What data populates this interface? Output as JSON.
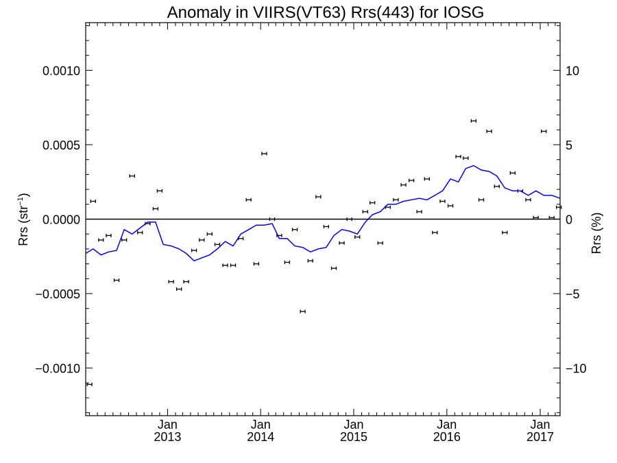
{
  "chart_data": {
    "type": "scatter",
    "title": "Anomaly in VIIRS(VT63) Rrs(443) for IOSG",
    "ylabel_left": "Rrs (str",
    "ylabel_left_sup": "−1",
    "ylabel_left_close": ")",
    "ylabel_right": "Rrs (%)",
    "x_range": [
      "2012-02-15",
      "2017-03-20"
    ],
    "ylim_left": [
      -0.00132,
      0.00132
    ],
    "ylim_right": [
      -13.2,
      13.2
    ],
    "zero_line": 0,
    "x_ticks": [
      {
        "date": "2013-01-01",
        "label_top": "Jan",
        "label_bottom": "2013"
      },
      {
        "date": "2014-01-01",
        "label_top": "Jan",
        "label_bottom": "2014"
      },
      {
        "date": "2015-01-01",
        "label_top": "Jan",
        "label_bottom": "2015"
      },
      {
        "date": "2016-01-01",
        "label_top": "Jan",
        "label_bottom": "2016"
      },
      {
        "date": "2017-01-01",
        "label_top": "Jan",
        "label_bottom": "2017"
      }
    ],
    "y_ticks_left": [
      {
        "value": 0.001,
        "label": "0.0010"
      },
      {
        "value": 0.0005,
        "label": "0.0005"
      },
      {
        "value": 0,
        "label": "0.0000"
      },
      {
        "value": -0.0005,
        "label": "−0.0005"
      },
      {
        "value": -0.001,
        "label": "−0.0010"
      }
    ],
    "y_ticks_right": [
      {
        "value": 10,
        "label": "10"
      },
      {
        "value": 5,
        "label": "5"
      },
      {
        "value": 0,
        "label": "0"
      },
      {
        "value": -5,
        "label": "−5"
      },
      {
        "value": -10,
        "label": "−10"
      }
    ],
    "series": [
      {
        "kind": "points-with-errorbars",
        "color": "#000000",
        "points": [
          {
            "date": "2012-03-01",
            "value": -0.00111
          },
          {
            "date": "2012-03-15",
            "value": 0.00012
          },
          {
            "date": "2012-04-15",
            "value": -0.00014
          },
          {
            "date": "2012-05-15",
            "value": -0.00011
          },
          {
            "date": "2012-06-15",
            "value": -0.00041
          },
          {
            "date": "2012-07-15",
            "value": -0.00014
          },
          {
            "date": "2012-08-15",
            "value": 0.00029
          },
          {
            "date": "2012-09-15",
            "value": -9e-05
          },
          {
            "date": "2012-10-15",
            "value": -3e-05
          },
          {
            "date": "2012-11-15",
            "value": 7e-05
          },
          {
            "date": "2012-12-01",
            "value": 0.00019
          },
          {
            "date": "2013-01-15",
            "value": -0.00042
          },
          {
            "date": "2013-02-15",
            "value": -0.00047
          },
          {
            "date": "2013-03-15",
            "value": -0.00042
          },
          {
            "date": "2013-04-15",
            "value": -0.00021
          },
          {
            "date": "2013-05-15",
            "value": -0.00014
          },
          {
            "date": "2013-06-15",
            "value": -0.0001
          },
          {
            "date": "2013-07-15",
            "value": -0.00017
          },
          {
            "date": "2013-08-15",
            "value": -0.00031
          },
          {
            "date": "2013-09-15",
            "value": -0.00031
          },
          {
            "date": "2013-10-15",
            "value": -0.00013
          },
          {
            "date": "2013-11-15",
            "value": 0.00013
          },
          {
            "date": "2013-12-15",
            "value": -0.0003
          },
          {
            "date": "2014-01-15",
            "value": 0.00044
          },
          {
            "date": "2014-02-15",
            "value": 0.0
          },
          {
            "date": "2014-03-15",
            "value": -0.00011
          },
          {
            "date": "2014-04-15",
            "value": -0.00029
          },
          {
            "date": "2014-05-15",
            "value": -7e-05
          },
          {
            "date": "2014-06-15",
            "value": -0.00062
          },
          {
            "date": "2014-07-15",
            "value": -0.00028
          },
          {
            "date": "2014-08-15",
            "value": 0.00015
          },
          {
            "date": "2014-09-15",
            "value": -5e-05
          },
          {
            "date": "2014-10-15",
            "value": -0.00033
          },
          {
            "date": "2014-11-15",
            "value": -0.00016
          },
          {
            "date": "2014-12-15",
            "value": 0.0
          },
          {
            "date": "2015-01-15",
            "value": -0.00012
          },
          {
            "date": "2015-02-15",
            "value": 5e-05
          },
          {
            "date": "2015-03-15",
            "value": 0.00011
          },
          {
            "date": "2015-04-15",
            "value": -0.00016
          },
          {
            "date": "2015-05-15",
            "value": 8e-05
          },
          {
            "date": "2015-06-15",
            "value": 0.00013
          },
          {
            "date": "2015-07-15",
            "value": 0.00023
          },
          {
            "date": "2015-08-15",
            "value": 0.00026
          },
          {
            "date": "2015-09-15",
            "value": 5e-05
          },
          {
            "date": "2015-10-15",
            "value": 0.00027
          },
          {
            "date": "2015-11-15",
            "value": -9e-05
          },
          {
            "date": "2015-12-15",
            "value": 0.00012
          },
          {
            "date": "2016-01-15",
            "value": 9e-05
          },
          {
            "date": "2016-02-15",
            "value": 0.00042
          },
          {
            "date": "2016-03-15",
            "value": 0.00041
          },
          {
            "date": "2016-04-15",
            "value": 0.00066
          },
          {
            "date": "2016-05-15",
            "value": 0.00013
          },
          {
            "date": "2016-06-15",
            "value": 0.00059
          },
          {
            "date": "2016-07-15",
            "value": 0.00022
          },
          {
            "date": "2016-08-15",
            "value": -9e-05
          },
          {
            "date": "2016-09-15",
            "value": 0.00031
          },
          {
            "date": "2016-10-15",
            "value": 0.00019
          },
          {
            "date": "2016-11-15",
            "value": 0.00013
          },
          {
            "date": "2016-12-15",
            "value": 1e-05
          },
          {
            "date": "2017-01-15",
            "value": 0.00059
          },
          {
            "date": "2017-02-15",
            "value": 1e-05
          },
          {
            "date": "2017-03-15",
            "value": 8e-05
          }
        ]
      },
      {
        "kind": "line",
        "color": "#0000ff",
        "points": [
          {
            "date": "2012-02-15",
            "value": -0.00023
          },
          {
            "date": "2012-03-15",
            "value": -0.0002
          },
          {
            "date": "2012-04-15",
            "value": -0.00024
          },
          {
            "date": "2012-05-15",
            "value": -0.00022
          },
          {
            "date": "2012-06-15",
            "value": -0.00021
          },
          {
            "date": "2012-07-15",
            "value": -7e-05
          },
          {
            "date": "2012-08-15",
            "value": -0.0001
          },
          {
            "date": "2012-09-15",
            "value": -6e-05
          },
          {
            "date": "2012-10-15",
            "value": -2e-05
          },
          {
            "date": "2012-11-15",
            "value": -2e-05
          },
          {
            "date": "2012-12-15",
            "value": -0.00017
          },
          {
            "date": "2013-01-15",
            "value": -0.00018
          },
          {
            "date": "2013-02-15",
            "value": -0.0002
          },
          {
            "date": "2013-03-15",
            "value": -0.00023
          },
          {
            "date": "2013-04-15",
            "value": -0.00028
          },
          {
            "date": "2013-05-15",
            "value": -0.00026
          },
          {
            "date": "2013-06-15",
            "value": -0.00024
          },
          {
            "date": "2013-07-15",
            "value": -0.0002
          },
          {
            "date": "2013-08-15",
            "value": -0.00015
          },
          {
            "date": "2013-09-15",
            "value": -0.00018
          },
          {
            "date": "2013-10-15",
            "value": -0.0001
          },
          {
            "date": "2013-11-15",
            "value": -7e-05
          },
          {
            "date": "2013-12-15",
            "value": -4e-05
          },
          {
            "date": "2014-01-15",
            "value": -4e-05
          },
          {
            "date": "2014-02-15",
            "value": -3e-05
          },
          {
            "date": "2014-03-15",
            "value": -0.00013
          },
          {
            "date": "2014-04-15",
            "value": -0.00013
          },
          {
            "date": "2014-05-15",
            "value": -0.00018
          },
          {
            "date": "2014-06-15",
            "value": -0.00019
          },
          {
            "date": "2014-07-15",
            "value": -0.00022
          },
          {
            "date": "2014-08-15",
            "value": -0.0002
          },
          {
            "date": "2014-09-15",
            "value": -0.00019
          },
          {
            "date": "2014-10-15",
            "value": -0.00011
          },
          {
            "date": "2014-11-15",
            "value": -7e-05
          },
          {
            "date": "2014-12-15",
            "value": -8e-05
          },
          {
            "date": "2015-01-15",
            "value": -0.0001
          },
          {
            "date": "2015-02-15",
            "value": -2e-05
          },
          {
            "date": "2015-03-15",
            "value": 3e-05
          },
          {
            "date": "2015-04-15",
            "value": 5e-05
          },
          {
            "date": "2015-05-15",
            "value": 0.0001
          },
          {
            "date": "2015-06-15",
            "value": 0.0001
          },
          {
            "date": "2015-07-15",
            "value": 0.00012
          },
          {
            "date": "2015-08-15",
            "value": 0.00013
          },
          {
            "date": "2015-09-15",
            "value": 0.00014
          },
          {
            "date": "2015-10-15",
            "value": 0.00013
          },
          {
            "date": "2015-11-15",
            "value": 0.00016
          },
          {
            "date": "2015-12-15",
            "value": 0.00019
          },
          {
            "date": "2016-01-15",
            "value": 0.00027
          },
          {
            "date": "2016-02-15",
            "value": 0.00025
          },
          {
            "date": "2016-03-15",
            "value": 0.00034
          },
          {
            "date": "2016-04-15",
            "value": 0.00036
          },
          {
            "date": "2016-05-15",
            "value": 0.00033
          },
          {
            "date": "2016-06-15",
            "value": 0.00032
          },
          {
            "date": "2016-07-15",
            "value": 0.00029
          },
          {
            "date": "2016-08-15",
            "value": 0.00021
          },
          {
            "date": "2016-09-15",
            "value": 0.00019
          },
          {
            "date": "2016-10-15",
            "value": 0.00019
          },
          {
            "date": "2016-11-15",
            "value": 0.00016
          },
          {
            "date": "2016-12-15",
            "value": 0.00019
          },
          {
            "date": "2017-01-15",
            "value": 0.00016
          },
          {
            "date": "2017-02-15",
            "value": 0.00016
          },
          {
            "date": "2017-03-20",
            "value": 0.00014
          }
        ]
      }
    ]
  }
}
